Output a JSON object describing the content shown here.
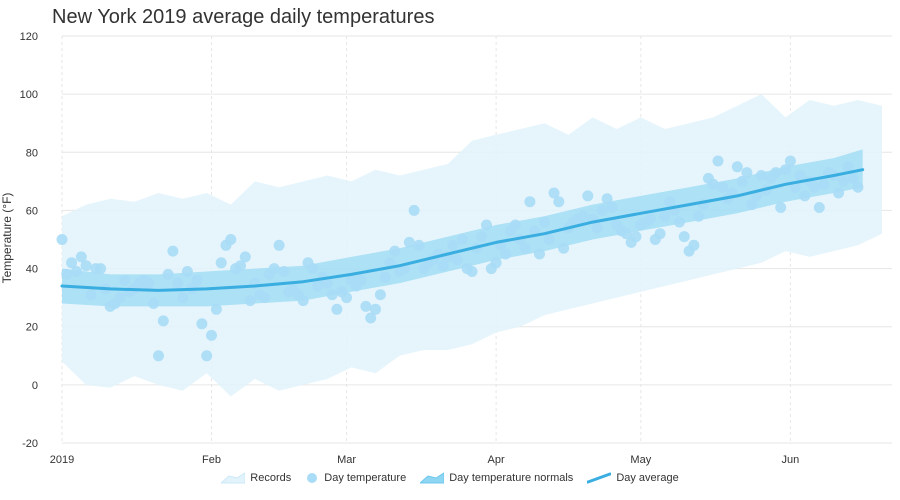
{
  "chart_data": {
    "type": "line",
    "title": "New York 2019 average daily temperatures",
    "xlabel": "",
    "ylabel": "Temperature (°F)",
    "ylim": [
      -20,
      120
    ],
    "yticks": [
      -20,
      0,
      20,
      40,
      60,
      80,
      100,
      120
    ],
    "x_day_range": [
      0,
      170
    ],
    "xticks": [
      {
        "day": 0,
        "label": "2019"
      },
      {
        "day": 31,
        "label": "Feb"
      },
      {
        "day": 59,
        "label": "Mar"
      },
      {
        "day": 90,
        "label": "Apr"
      },
      {
        "day": 120,
        "label": "May"
      },
      {
        "day": 151,
        "label": "Jun"
      }
    ],
    "series": [
      {
        "name": "Records",
        "type": "arearange",
        "color": "#e2f3fc",
        "points": [
          [
            0,
            8,
            58
          ],
          [
            5,
            0,
            62
          ],
          [
            10,
            -1,
            64
          ],
          [
            15,
            3,
            63
          ],
          [
            20,
            0,
            66
          ],
          [
            25,
            -2,
            64
          ],
          [
            30,
            4,
            66
          ],
          [
            35,
            -4,
            62
          ],
          [
            40,
            2,
            70
          ],
          [
            45,
            -2,
            68
          ],
          [
            50,
            0,
            70
          ],
          [
            55,
            2,
            72
          ],
          [
            60,
            6,
            70
          ],
          [
            65,
            4,
            74
          ],
          [
            70,
            10,
            72
          ],
          [
            75,
            12,
            74
          ],
          [
            80,
            12,
            76
          ],
          [
            85,
            14,
            84
          ],
          [
            90,
            18,
            86
          ],
          [
            95,
            20,
            88
          ],
          [
            100,
            24,
            90
          ],
          [
            105,
            26,
            86
          ],
          [
            110,
            28,
            92
          ],
          [
            115,
            30,
            88
          ],
          [
            120,
            32,
            92
          ],
          [
            125,
            34,
            88
          ],
          [
            130,
            36,
            90
          ],
          [
            135,
            38,
            92
          ],
          [
            140,
            40,
            96
          ],
          [
            145,
            42,
            100
          ],
          [
            150,
            46,
            92
          ],
          [
            155,
            44,
            98
          ],
          [
            160,
            46,
            96
          ],
          [
            165,
            48,
            98
          ],
          [
            170,
            52,
            96
          ]
        ]
      },
      {
        "name": "Day temperature",
        "type": "scatter",
        "color": "#a9dcf6",
        "points": [
          [
            0,
            50
          ],
          [
            1,
            38
          ],
          [
            2,
            42
          ],
          [
            3,
            39
          ],
          [
            4,
            44
          ],
          [
            5,
            41
          ],
          [
            6,
            31
          ],
          [
            7,
            40
          ],
          [
            8,
            40
          ],
          [
            9,
            33
          ],
          [
            10,
            27
          ],
          [
            11,
            28
          ],
          [
            12,
            30
          ],
          [
            13,
            36
          ],
          [
            14,
            32
          ],
          [
            15,
            33
          ],
          [
            16,
            35
          ],
          [
            17,
            36
          ],
          [
            18,
            35
          ],
          [
            19,
            28
          ],
          [
            20,
            10
          ],
          [
            21,
            22
          ],
          [
            22,
            38
          ],
          [
            23,
            46
          ],
          [
            24,
            35
          ],
          [
            25,
            30
          ],
          [
            26,
            39
          ],
          [
            27,
            33
          ],
          [
            28,
            36
          ],
          [
            29,
            21
          ],
          [
            30,
            10
          ],
          [
            31,
            17
          ],
          [
            32,
            26
          ],
          [
            33,
            42
          ],
          [
            34,
            48
          ],
          [
            35,
            50
          ],
          [
            36,
            40
          ],
          [
            37,
            41
          ],
          [
            38,
            44
          ],
          [
            39,
            29
          ],
          [
            40,
            35
          ],
          [
            41,
            31
          ],
          [
            42,
            30
          ],
          [
            43,
            38
          ],
          [
            44,
            40
          ],
          [
            45,
            48
          ],
          [
            46,
            39
          ],
          [
            47,
            32
          ],
          [
            48,
            33
          ],
          [
            49,
            31
          ],
          [
            50,
            29
          ],
          [
            51,
            42
          ],
          [
            52,
            40
          ],
          [
            53,
            34
          ],
          [
            54,
            37
          ],
          [
            55,
            35
          ],
          [
            56,
            31
          ],
          [
            57,
            26
          ],
          [
            58,
            32
          ],
          [
            59,
            30
          ],
          [
            60,
            36
          ],
          [
            61,
            34
          ],
          [
            62,
            36
          ],
          [
            63,
            27
          ],
          [
            64,
            23
          ],
          [
            65,
            26
          ],
          [
            66,
            31
          ],
          [
            67,
            37
          ],
          [
            68,
            42
          ],
          [
            69,
            46
          ],
          [
            70,
            39
          ],
          [
            71,
            40
          ],
          [
            72,
            49
          ],
          [
            73,
            60
          ],
          [
            74,
            48
          ],
          [
            75,
            40
          ],
          [
            76,
            42
          ],
          [
            77,
            43
          ],
          [
            78,
            45
          ],
          [
            79,
            41
          ],
          [
            80,
            44
          ],
          [
            81,
            48
          ],
          [
            82,
            43
          ],
          [
            83,
            50
          ],
          [
            84,
            40
          ],
          [
            85,
            39
          ],
          [
            86,
            47
          ],
          [
            87,
            51
          ],
          [
            88,
            55
          ],
          [
            89,
            40
          ],
          [
            90,
            42
          ],
          [
            91,
            48
          ],
          [
            92,
            45
          ],
          [
            93,
            53
          ],
          [
            94,
            55
          ],
          [
            95,
            50
          ],
          [
            96,
            47
          ],
          [
            97,
            63
          ],
          [
            98,
            53
          ],
          [
            99,
            45
          ],
          [
            100,
            56
          ],
          [
            101,
            50
          ],
          [
            102,
            66
          ],
          [
            103,
            63
          ],
          [
            104,
            47
          ],
          [
            105,
            54
          ],
          [
            106,
            56
          ],
          [
            107,
            57
          ],
          [
            108,
            58
          ],
          [
            109,
            65
          ],
          [
            110,
            57
          ],
          [
            111,
            54
          ],
          [
            112,
            60
          ],
          [
            113,
            64
          ],
          [
            114,
            61
          ],
          [
            115,
            55
          ],
          [
            116,
            53
          ],
          [
            117,
            52
          ],
          [
            118,
            49
          ],
          [
            119,
            51
          ],
          [
            120,
            55
          ],
          [
            121,
            56
          ],
          [
            122,
            57
          ],
          [
            123,
            50
          ],
          [
            124,
            52
          ],
          [
            125,
            58
          ],
          [
            126,
            63
          ],
          [
            127,
            60
          ],
          [
            128,
            56
          ],
          [
            129,
            51
          ],
          [
            130,
            46
          ],
          [
            131,
            48
          ],
          [
            132,
            58
          ],
          [
            133,
            62
          ],
          [
            134,
            71
          ],
          [
            135,
            69
          ],
          [
            136,
            77
          ],
          [
            137,
            68
          ],
          [
            138,
            64
          ],
          [
            139,
            66
          ],
          [
            140,
            75
          ],
          [
            141,
            70
          ],
          [
            142,
            73
          ],
          [
            143,
            62
          ],
          [
            144,
            65
          ],
          [
            145,
            72
          ],
          [
            146,
            67
          ],
          [
            147,
            71
          ],
          [
            148,
            73
          ],
          [
            149,
            61
          ],
          [
            150,
            74
          ],
          [
            151,
            77
          ],
          [
            152,
            68
          ],
          [
            153,
            72
          ],
          [
            154,
            65
          ],
          [
            155,
            70
          ],
          [
            156,
            68
          ],
          [
            157,
            61
          ],
          [
            158,
            69
          ],
          [
            159,
            73
          ],
          [
            160,
            72
          ],
          [
            161,
            66
          ],
          [
            162,
            70
          ],
          [
            163,
            75
          ],
          [
            164,
            71
          ],
          [
            165,
            68
          ]
        ]
      },
      {
        "name": "Day temperature normals",
        "type": "arearange",
        "color": "#7dd0f0",
        "points": [
          [
            0,
            28,
            40
          ],
          [
            10,
            27,
            38
          ],
          [
            20,
            27,
            38
          ],
          [
            30,
            27,
            39
          ],
          [
            40,
            28,
            40
          ],
          [
            50,
            29,
            41
          ],
          [
            60,
            32,
            44
          ],
          [
            70,
            35,
            47
          ],
          [
            80,
            39,
            51
          ],
          [
            90,
            43,
            55
          ],
          [
            100,
            46,
            58
          ],
          [
            110,
            50,
            62
          ],
          [
            120,
            53,
            65
          ],
          [
            130,
            56,
            68
          ],
          [
            140,
            59,
            71
          ],
          [
            150,
            63,
            75
          ],
          [
            160,
            66,
            78
          ],
          [
            166,
            68,
            81
          ]
        ]
      },
      {
        "name": "Day average",
        "type": "line",
        "color": "#3aaee0",
        "points": [
          [
            0,
            34
          ],
          [
            10,
            33
          ],
          [
            20,
            32.5
          ],
          [
            30,
            33
          ],
          [
            40,
            34
          ],
          [
            50,
            35.5
          ],
          [
            60,
            38
          ],
          [
            70,
            41
          ],
          [
            80,
            45
          ],
          [
            90,
            49
          ],
          [
            100,
            52
          ],
          [
            110,
            56
          ],
          [
            120,
            59
          ],
          [
            130,
            62
          ],
          [
            140,
            65
          ],
          [
            150,
            69
          ],
          [
            160,
            72
          ],
          [
            166,
            74
          ]
        ]
      }
    ],
    "legend": {
      "position": "bottom-center",
      "items": [
        "Records",
        "Day temperature",
        "Day temperature normals",
        "Day average"
      ]
    }
  }
}
